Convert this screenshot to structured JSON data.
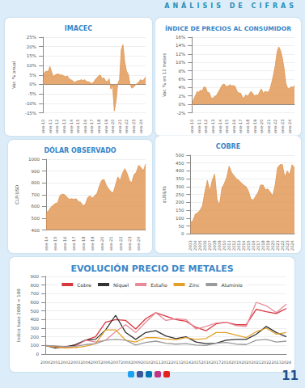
{
  "header": {
    "title": "ANÁLISIS DE CIFRAS"
  },
  "page_number": "11",
  "chart_data": [
    {
      "type": "area",
      "title": "IMACEC",
      "y_label": "Var. % anual",
      "color": "#e0944f",
      "grid": true,
      "categories": [
        "ene-10",
        null,
        null,
        null,
        "ene-11",
        null,
        null,
        null,
        "ene-12",
        null,
        null,
        null,
        "ene-13",
        null,
        null,
        null,
        "ene-14",
        null,
        null,
        null,
        "ene-15",
        null,
        null,
        null,
        "ene-16",
        null,
        null,
        null,
        "ene-17",
        null,
        null,
        null,
        "ene-18",
        null,
        null,
        null,
        "ene-19",
        null,
        null,
        null,
        "ene-20",
        null,
        null,
        null,
        "ene-21",
        null,
        null,
        null,
        "ene-22",
        null,
        null,
        null,
        "ene-23",
        null,
        null,
        null,
        "ene-24",
        null,
        null,
        null
      ],
      "values": [
        1.5,
        6.5,
        7.0,
        6.8,
        9.5,
        6.5,
        4.0,
        5.0,
        5.5,
        5.5,
        5.0,
        5.0,
        4.5,
        4.0,
        4.5,
        3.0,
        2.5,
        2.0,
        1.0,
        1.5,
        2.0,
        2.0,
        2.5,
        2.0,
        2.5,
        1.5,
        1.5,
        1.0,
        0.5,
        1.0,
        2.5,
        3.5,
        4.5,
        5.0,
        3.0,
        3.5,
        1.8,
        1.5,
        3.0,
        -2.5,
        -0.5,
        -14.0,
        -9.0,
        0.5,
        2.5,
        18.5,
        21.0,
        12.0,
        7.0,
        5.5,
        0.5,
        -2.0,
        -1.5,
        -0.5,
        0.5,
        1.0,
        2.5,
        2.0,
        2.5,
        4.0
      ],
      "ylim": [
        -15,
        25
      ],
      "yticks": [
        {
          "value": -15,
          "label": "-15%"
        },
        {
          "value": -10,
          "label": "-10%"
        },
        {
          "value": -5,
          "label": "-5%"
        },
        {
          "value": 0,
          "label": "0%"
        },
        {
          "value": 5,
          "label": "5%"
        },
        {
          "value": 10,
          "label": "10%"
        },
        {
          "value": 15,
          "label": "15%"
        },
        {
          "value": 20,
          "label": "20%"
        },
        {
          "value": 25,
          "label": "25%"
        }
      ]
    },
    {
      "type": "area",
      "title": "ÍNDICE DE PRECIOS AL CONSUMIDOR",
      "y_label": "Var. % en 12 meses",
      "color": "#e0944f",
      "grid": true,
      "categories": [
        "ene-10",
        null,
        null,
        null,
        "ene-11",
        null,
        null,
        null,
        "ene-12",
        null,
        null,
        null,
        "ene-13",
        null,
        null,
        null,
        "ene-14",
        null,
        null,
        null,
        "ene-15",
        null,
        null,
        null,
        "ene-16",
        null,
        null,
        null,
        "ene-17",
        null,
        null,
        null,
        "ene-18",
        null,
        null,
        null,
        "ene-19",
        null,
        null,
        null,
        "ene-20",
        null,
        null,
        null,
        "ene-21",
        null,
        null,
        null,
        "ene-22",
        null,
        null,
        null,
        "ene-23",
        null,
        null,
        null,
        "ene-24",
        null,
        null,
        null
      ],
      "values": [
        -0.5,
        1.2,
        2.0,
        3.0,
        2.9,
        3.4,
        3.2,
        4.2,
        4.0,
        2.8,
        2.8,
        1.6,
        1.4,
        1.9,
        2.0,
        2.8,
        3.5,
        4.3,
        4.8,
        4.7,
        4.2,
        4.4,
        4.7,
        4.4,
        4.5,
        4.2,
        3.1,
        2.7,
        2.7,
        1.7,
        1.5,
        2.3,
        1.9,
        2.5,
        3.1,
        2.6,
        2.0,
        2.3,
        2.1,
        3.0,
        3.7,
        2.6,
        3.1,
        3.0,
        2.9,
        3.8,
        5.3,
        7.2,
        9.4,
        12.5,
        13.7,
        12.8,
        11.1,
        8.7,
        5.1,
        3.9,
        3.7,
        4.2,
        4.1,
        4.5
      ],
      "ylim": [
        -2,
        16
      ],
      "yticks": [
        {
          "value": -2,
          "label": "-2%"
        },
        {
          "value": 0,
          "label": "0%"
        },
        {
          "value": 2,
          "label": "2%"
        },
        {
          "value": 4,
          "label": "4%"
        },
        {
          "value": 6,
          "label": "6%"
        },
        {
          "value": 8,
          "label": "8%"
        },
        {
          "value": 10,
          "label": "10%"
        },
        {
          "value": 12,
          "label": "12%"
        },
        {
          "value": 14,
          "label": "14%"
        },
        {
          "value": 16,
          "label": "16%"
        }
      ]
    },
    {
      "type": "area",
      "title": "DÓLAR OBSERVADO",
      "y_label": "CLP/USD",
      "color": "#e0944f",
      "grid": true,
      "categories": [
        "ene-14",
        null,
        null,
        null,
        "ene-15",
        null,
        null,
        null,
        "ene-16",
        null,
        null,
        null,
        "ene-17",
        null,
        null,
        null,
        "ene-18",
        null,
        null,
        null,
        "ene-19",
        null,
        null,
        null,
        "ene-20",
        null,
        null,
        null,
        "ene-21",
        null,
        null,
        null,
        "ene-22",
        null,
        null,
        null,
        "ene-23",
        null,
        null,
        null,
        "ene-24",
        null,
        null,
        null
      ],
      "values": [
        550,
        560,
        590,
        610,
        625,
        630,
        690,
        705,
        700,
        680,
        660,
        665,
        660,
        665,
        640,
        635,
        605,
        620,
        675,
        690,
        670,
        690,
        710,
        770,
        820,
        830,
        780,
        750,
        725,
        715,
        780,
        850,
        820,
        880,
        920,
        880,
        820,
        800,
        870,
        890,
        950,
        930,
        900,
        960
      ],
      "ylim": [
        400,
        1000
      ],
      "yticks": [
        400,
        500,
        600,
        700,
        800,
        900,
        1000
      ]
    },
    {
      "type": "area",
      "title": "COBRE",
      "y_label": "¢US$/lb",
      "color": "#e0944f",
      "grid": true,
      "categories": [
        "2003",
        null,
        "2004",
        null,
        "2005",
        null,
        "2006",
        null,
        "2007",
        null,
        "2008",
        null,
        "2009",
        null,
        "2010",
        null,
        "2011",
        null,
        "2012",
        null,
        "2013",
        null,
        "2014",
        null,
        "2015",
        null,
        "2016",
        null,
        "2017",
        null,
        "2018",
        null,
        "2019",
        null,
        "2020",
        null,
        "2021",
        null,
        "2022",
        null,
        "2023",
        null,
        "2024",
        null
      ],
      "values": [
        75,
        82,
        125,
        135,
        150,
        180,
        270,
        340,
        270,
        340,
        380,
        220,
        180,
        290,
        320,
        360,
        430,
        390,
        370,
        350,
        340,
        325,
        310,
        300,
        270,
        220,
        215,
        240,
        265,
        310,
        310,
        280,
        285,
        265,
        240,
        310,
        420,
        440,
        440,
        360,
        400,
        375,
        440,
        420
      ],
      "ylim": [
        0,
        500
      ],
      "yticks": [
        0,
        50,
        100,
        150,
        200,
        250,
        300,
        350,
        400,
        450,
        500
      ]
    },
    {
      "type": "line",
      "title": "EVOLUCIÓN PRECIO DE METALES",
      "y_label": "Índice base 2000 = 100",
      "grid": true,
      "legend": "top",
      "categories": [
        "2000",
        "2001",
        "2002",
        "2003",
        "2004",
        "2005",
        "2006",
        "2007",
        "2008",
        "2009",
        "2010",
        "2011",
        "2012",
        "2013",
        "2014",
        "2015",
        "2016",
        "2017",
        "2018",
        "2019",
        "2020",
        "2021",
        "2022",
        "2023",
        "2024"
      ],
      "series": [
        {
          "name": "Cobre",
          "color": "#d9363e",
          "values": [
            100,
            88,
            88,
            100,
            160,
            200,
            370,
            400,
            390,
            290,
            410,
            480,
            440,
            400,
            380,
            310,
            270,
            350,
            370,
            340,
            340,
            520,
            490,
            470,
            530
          ]
        },
        {
          "name": "Níquel",
          "color": "#333333",
          "values": [
            100,
            70,
            80,
            110,
            160,
            170,
            280,
            450,
            250,
            170,
            250,
            270,
            210,
            180,
            200,
            140,
            120,
            125,
            160,
            170,
            170,
            230,
            320,
            250,
            200
          ]
        },
        {
          "name": "Estaño",
          "color": "#e88a9a",
          "values": [
            100,
            80,
            75,
            90,
            160,
            140,
            160,
            260,
            340,
            250,
            370,
            480,
            390,
            410,
            400,
            290,
            320,
            360,
            370,
            330,
            320,
            600,
            560,
            480,
            580
          ]
        },
        {
          "name": "Zinc",
          "color": "#e3a12b",
          "values": [
            100,
            80,
            70,
            75,
            90,
            120,
            280,
            280,
            160,
            140,
            190,
            190,
            175,
            165,
            190,
            170,
            180,
            250,
            250,
            220,
            190,
            260,
            300,
            230,
            250
          ]
        },
        {
          "name": "Aluminio",
          "color": "#9a9a9a",
          "values": [
            100,
            95,
            85,
            90,
            110,
            120,
            160,
            170,
            160,
            105,
            135,
            150,
            125,
            115,
            120,
            105,
            100,
            125,
            135,
            115,
            110,
            160,
            170,
            140,
            150
          ]
        }
      ],
      "ylim": [
        0,
        900
      ],
      "yticks": [
        0,
        100,
        200,
        300,
        400,
        500,
        600,
        700,
        800,
        900
      ]
    }
  ]
}
